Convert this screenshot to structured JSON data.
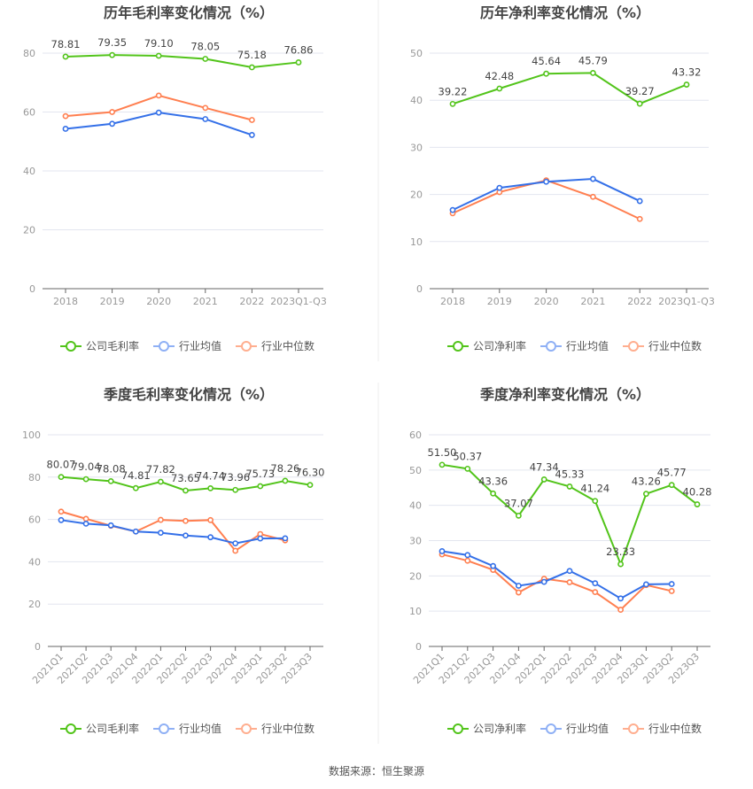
{
  "source": "数据来源：恒生聚源",
  "colors": {
    "company": "#52c41a",
    "avg": "#3470e8",
    "median": "#ff7f50",
    "grid": "#e3e6ef",
    "axis": "#666"
  },
  "chart_data": [
    {
      "type": "line",
      "title": "历年毛利率变化情况（%）",
      "categories": [
        "2018",
        "2019",
        "2020",
        "2021",
        "2022",
        "2023Q1-Q3"
      ],
      "ylim": [
        0,
        80
      ],
      "yticks": [
        0,
        20,
        40,
        60,
        80
      ],
      "rotate": false,
      "series": [
        {
          "name": "公司毛利率",
          "key": "company",
          "labels": true,
          "values": [
            78.81,
            79.35,
            79.1,
            78.05,
            75.18,
            76.86
          ]
        },
        {
          "name": "行业均值",
          "key": "avg",
          "values": [
            54.3,
            56.0,
            59.8,
            57.6,
            52.2,
            null
          ]
        },
        {
          "name": "行业中位数",
          "key": "median",
          "values": [
            58.6,
            60.0,
            65.6,
            61.4,
            57.3,
            null
          ]
        }
      ]
    },
    {
      "type": "line",
      "title": "历年净利率变化情况（%）",
      "categories": [
        "2018",
        "2019",
        "2020",
        "2021",
        "2022",
        "2023Q1-Q3"
      ],
      "ylim": [
        0,
        50
      ],
      "yticks": [
        0,
        10,
        20,
        30,
        40,
        50
      ],
      "rotate": false,
      "series": [
        {
          "name": "公司净利率",
          "key": "company",
          "labels": true,
          "values": [
            39.22,
            42.48,
            45.64,
            45.79,
            39.27,
            43.32
          ]
        },
        {
          "name": "行业均值",
          "key": "avg",
          "values": [
            16.7,
            21.4,
            22.7,
            23.3,
            18.6,
            null
          ]
        },
        {
          "name": "行业中位数",
          "key": "median",
          "values": [
            16.0,
            20.5,
            23.0,
            19.5,
            14.8,
            null
          ]
        }
      ]
    },
    {
      "type": "line",
      "title": "季度毛利率变化情况（%）",
      "categories": [
        "2021Q1",
        "2021Q2",
        "2021Q3",
        "2021Q4",
        "2022Q1",
        "2022Q2",
        "2022Q3",
        "2022Q4",
        "2023Q1",
        "2023Q2",
        "2023Q3"
      ],
      "ylim": [
        0,
        100
      ],
      "yticks": [
        0,
        20,
        40,
        60,
        80,
        100
      ],
      "rotate": true,
      "series": [
        {
          "name": "公司毛利率",
          "key": "company",
          "labels": true,
          "values": [
            80.07,
            79.04,
            78.08,
            74.81,
            77.82,
            73.65,
            74.74,
            73.96,
            75.73,
            78.26,
            76.3
          ]
        },
        {
          "name": "行业均值",
          "key": "avg",
          "values": [
            59.7,
            58.0,
            57.2,
            54.3,
            53.7,
            52.4,
            51.6,
            48.7,
            51.0,
            51.1,
            null
          ]
        },
        {
          "name": "行业中位数",
          "key": "median",
          "values": [
            63.7,
            60.3,
            57.0,
            54.3,
            59.8,
            59.3,
            59.7,
            45.2,
            53.1,
            50.1,
            null
          ]
        }
      ]
    },
    {
      "type": "line",
      "title": "季度净利率变化情况（%）",
      "categories": [
        "2021Q1",
        "2021Q2",
        "2021Q3",
        "2021Q4",
        "2022Q1",
        "2022Q2",
        "2022Q3",
        "2022Q4",
        "2023Q1",
        "2023Q2",
        "2023Q3"
      ],
      "ylim": [
        0,
        60
      ],
      "yticks": [
        0,
        10,
        20,
        30,
        40,
        50,
        60
      ],
      "rotate": true,
      "series": [
        {
          "name": "公司净利率",
          "key": "company",
          "labels": true,
          "values": [
            51.5,
            50.37,
            43.36,
            37.07,
            47.34,
            45.33,
            41.24,
            23.33,
            43.26,
            45.77,
            40.28
          ]
        },
        {
          "name": "行业均值",
          "key": "avg",
          "values": [
            27.0,
            25.9,
            22.8,
            17.2,
            18.3,
            21.4,
            17.9,
            13.6,
            17.6,
            17.7,
            null
          ]
        },
        {
          "name": "行业中位数",
          "key": "median",
          "values": [
            26.1,
            24.3,
            21.7,
            15.3,
            19.2,
            18.2,
            15.4,
            10.4,
            17.4,
            15.7,
            null
          ]
        }
      ]
    }
  ]
}
